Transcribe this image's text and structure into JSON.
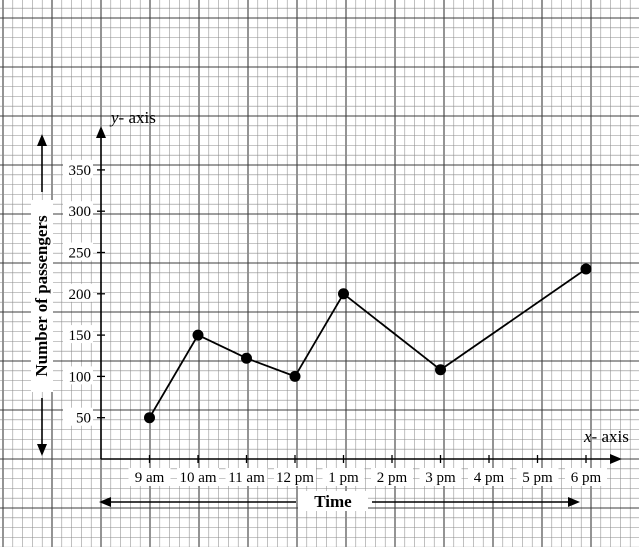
{
  "chart_data": {
    "type": "line",
    "categories": [
      "9 am",
      "10 am",
      "11 am",
      "12 pm",
      "1 pm",
      "2 pm",
      "3 pm",
      "4 pm",
      "5 pm",
      "6 pm"
    ],
    "series": [
      {
        "points": [
          {
            "x": "9 am",
            "y": 50
          },
          {
            "x": "10 am",
            "y": 150
          },
          {
            "x": "11 am",
            "y": 122
          },
          {
            "x": "12 pm",
            "y": 100
          },
          {
            "x": "1 pm",
            "y": 200
          },
          {
            "x": "3 pm",
            "y": 108
          },
          {
            "x": "6 pm",
            "y": 230
          }
        ]
      }
    ],
    "y_ticks": [
      50,
      100,
      150,
      200,
      250,
      300,
      350
    ],
    "ylim": [
      0,
      400
    ],
    "xlabel": "Time",
    "ylabel": "Number of passengers",
    "x_axis_name_prefix": "x",
    "x_axis_name_suffix": "- axis",
    "y_axis_name_prefix": "y",
    "y_axis_name_suffix": "- axis",
    "grid": true,
    "colors": {
      "grid_minor": "#8c8c8c",
      "grid_major": "#3c3c3c",
      "line": "#000000",
      "marker": "#000000"
    }
  }
}
